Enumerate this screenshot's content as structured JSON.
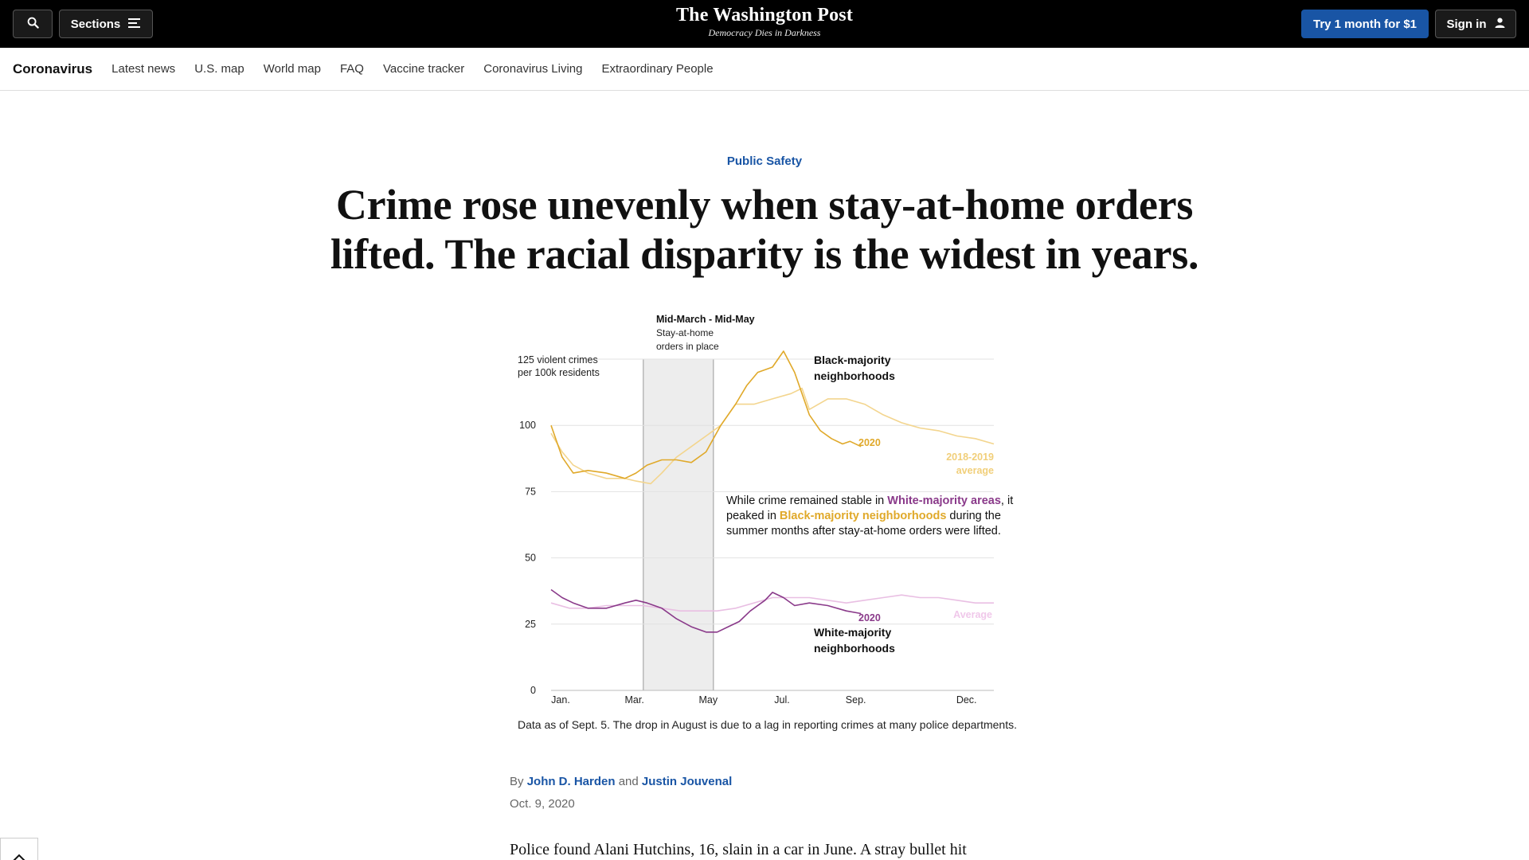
{
  "header": {
    "search_icon": "search-icon",
    "sections_label": "Sections",
    "logo_title": "The Washington Post",
    "logo_tagline": "Democracy Dies in Darkness",
    "try_label": "Try 1 month for $1",
    "signin_label": "Sign in"
  },
  "subnav": {
    "home": "Coronavirus",
    "items": [
      "Latest news",
      "U.S. map",
      "World map",
      "FAQ",
      "Vaccine tracker",
      "Coronavirus Living",
      "Extraordinary People"
    ]
  },
  "article": {
    "kicker": "Public Safety",
    "headline_line1": "Crime rose unevenly when stay-at-home orders",
    "headline_line2": "lifted. The racial disparity is the widest in years.",
    "caption": "Data as of Sept. 5. The drop in August is due to a lag in reporting crimes at many police departments.",
    "byline_prefix": "By",
    "author1": "John D. Harden",
    "byline_and": "and",
    "author2": "Justin Jouvenal",
    "date": "Oct. 9, 2020",
    "body_start": "Police found Alani Hutchins, 16, slain in a car in June. A stray bullet hit"
  },
  "colors": {
    "accent_blue": "#1955a5",
    "black_2020": "#e0a92a",
    "black_avg": "#f3d58e",
    "white_2020": "#8a3a8a",
    "white_avg": "#e9bfe3",
    "shade": "#ededed"
  },
  "chart_data": {
    "type": "line",
    "y_label_line1": "125 violent crimes",
    "y_label_line2": "per 100k residents",
    "y_ticks": [
      0,
      25,
      50,
      75,
      100
    ],
    "ylim": [
      0,
      125
    ],
    "x_ticks": [
      "Jan.",
      "Mar.",
      "May",
      "Jul.",
      "Sep.",
      "Dec."
    ],
    "x_tick_positions": [
      1,
      3,
      5,
      7,
      9,
      12
    ],
    "xlim": [
      1,
      13
    ],
    "shaded_range": [
      3.5,
      5.4
    ],
    "shade_title": "Mid-March - Mid-May",
    "shade_line1": "Stay-at-home",
    "shade_line2": "orders in place",
    "label_black_1": "Black-majority",
    "label_black_2": "neighborhoods",
    "label_white_1": "White-majority",
    "label_white_2": "neighborhoods",
    "label_2020": "2020",
    "label_avg_1": "2018-2019",
    "label_avg_2": "average",
    "label_average": "Average",
    "annotation": {
      "part1": "While crime remained stable in ",
      "white_text": "White-majority areas",
      "part2": ", it peaked in ",
      "black_text": "Black-majority neighborhoods",
      "part3": " during the summer months after stay-at-home orders were lifted."
    },
    "series": [
      {
        "name": "Black-majority 2020",
        "x": [
          1.0,
          1.3,
          1.6,
          2.0,
          2.5,
          3.0,
          3.3,
          3.6,
          4.0,
          4.4,
          4.8,
          5.2,
          5.6,
          6.0,
          6.3,
          6.6,
          7.0,
          7.3,
          7.6,
          7.8,
          8.0,
          8.3,
          8.6,
          8.9,
          9.1,
          9.4
        ],
        "values": [
          100,
          88,
          82,
          83,
          82,
          80,
          82,
          85,
          87,
          87,
          86,
          90,
          100,
          108,
          115,
          120,
          122,
          128,
          120,
          112,
          104,
          98,
          95,
          93,
          94,
          92
        ]
      },
      {
        "name": "Black-majority 2018-2019 average",
        "x": [
          1.0,
          1.3,
          1.6,
          2.0,
          2.5,
          3.0,
          3.3,
          3.7,
          4.0,
          4.4,
          4.8,
          5.2,
          5.6,
          6.0,
          6.5,
          7.0,
          7.5,
          7.8,
          8.0,
          8.5,
          9.0,
          9.5,
          10.0,
          10.5,
          11.0,
          11.5,
          12.0,
          12.5,
          13.0
        ],
        "values": [
          97,
          90,
          85,
          82,
          80,
          80,
          79,
          78,
          82,
          88,
          92,
          96,
          100,
          108,
          108,
          110,
          112,
          114,
          106,
          110,
          110,
          108,
          104,
          101,
          99,
          98,
          96,
          95,
          93
        ]
      },
      {
        "name": "White-majority 2020",
        "x": [
          1.0,
          1.3,
          1.6,
          2.0,
          2.5,
          3.0,
          3.3,
          3.6,
          4.0,
          4.4,
          4.8,
          5.2,
          5.5,
          5.8,
          6.1,
          6.4,
          6.8,
          7.0,
          7.3,
          7.6,
          8.0,
          8.5,
          9.0,
          9.4
        ],
        "values": [
          38,
          35,
          33,
          31,
          31,
          33,
          34,
          33,
          31,
          27,
          24,
          22,
          22,
          24,
          26,
          30,
          34,
          37,
          35,
          32,
          33,
          32,
          30,
          29
        ]
      },
      {
        "name": "White-majority average",
        "x": [
          1.0,
          1.5,
          2.0,
          2.5,
          3.0,
          3.5,
          4.0,
          4.5,
          5.0,
          5.5,
          6.0,
          6.5,
          7.0,
          7.5,
          8.0,
          8.5,
          9.0,
          9.5,
          10.0,
          10.5,
          11.0,
          11.5,
          12.0,
          12.5,
          13.0
        ],
        "values": [
          33,
          31,
          31,
          32,
          32,
          32,
          31,
          30,
          30,
          30,
          31,
          33,
          35,
          35,
          35,
          34,
          33,
          34,
          35,
          36,
          35,
          35,
          34,
          33,
          33
        ]
      }
    ]
  }
}
